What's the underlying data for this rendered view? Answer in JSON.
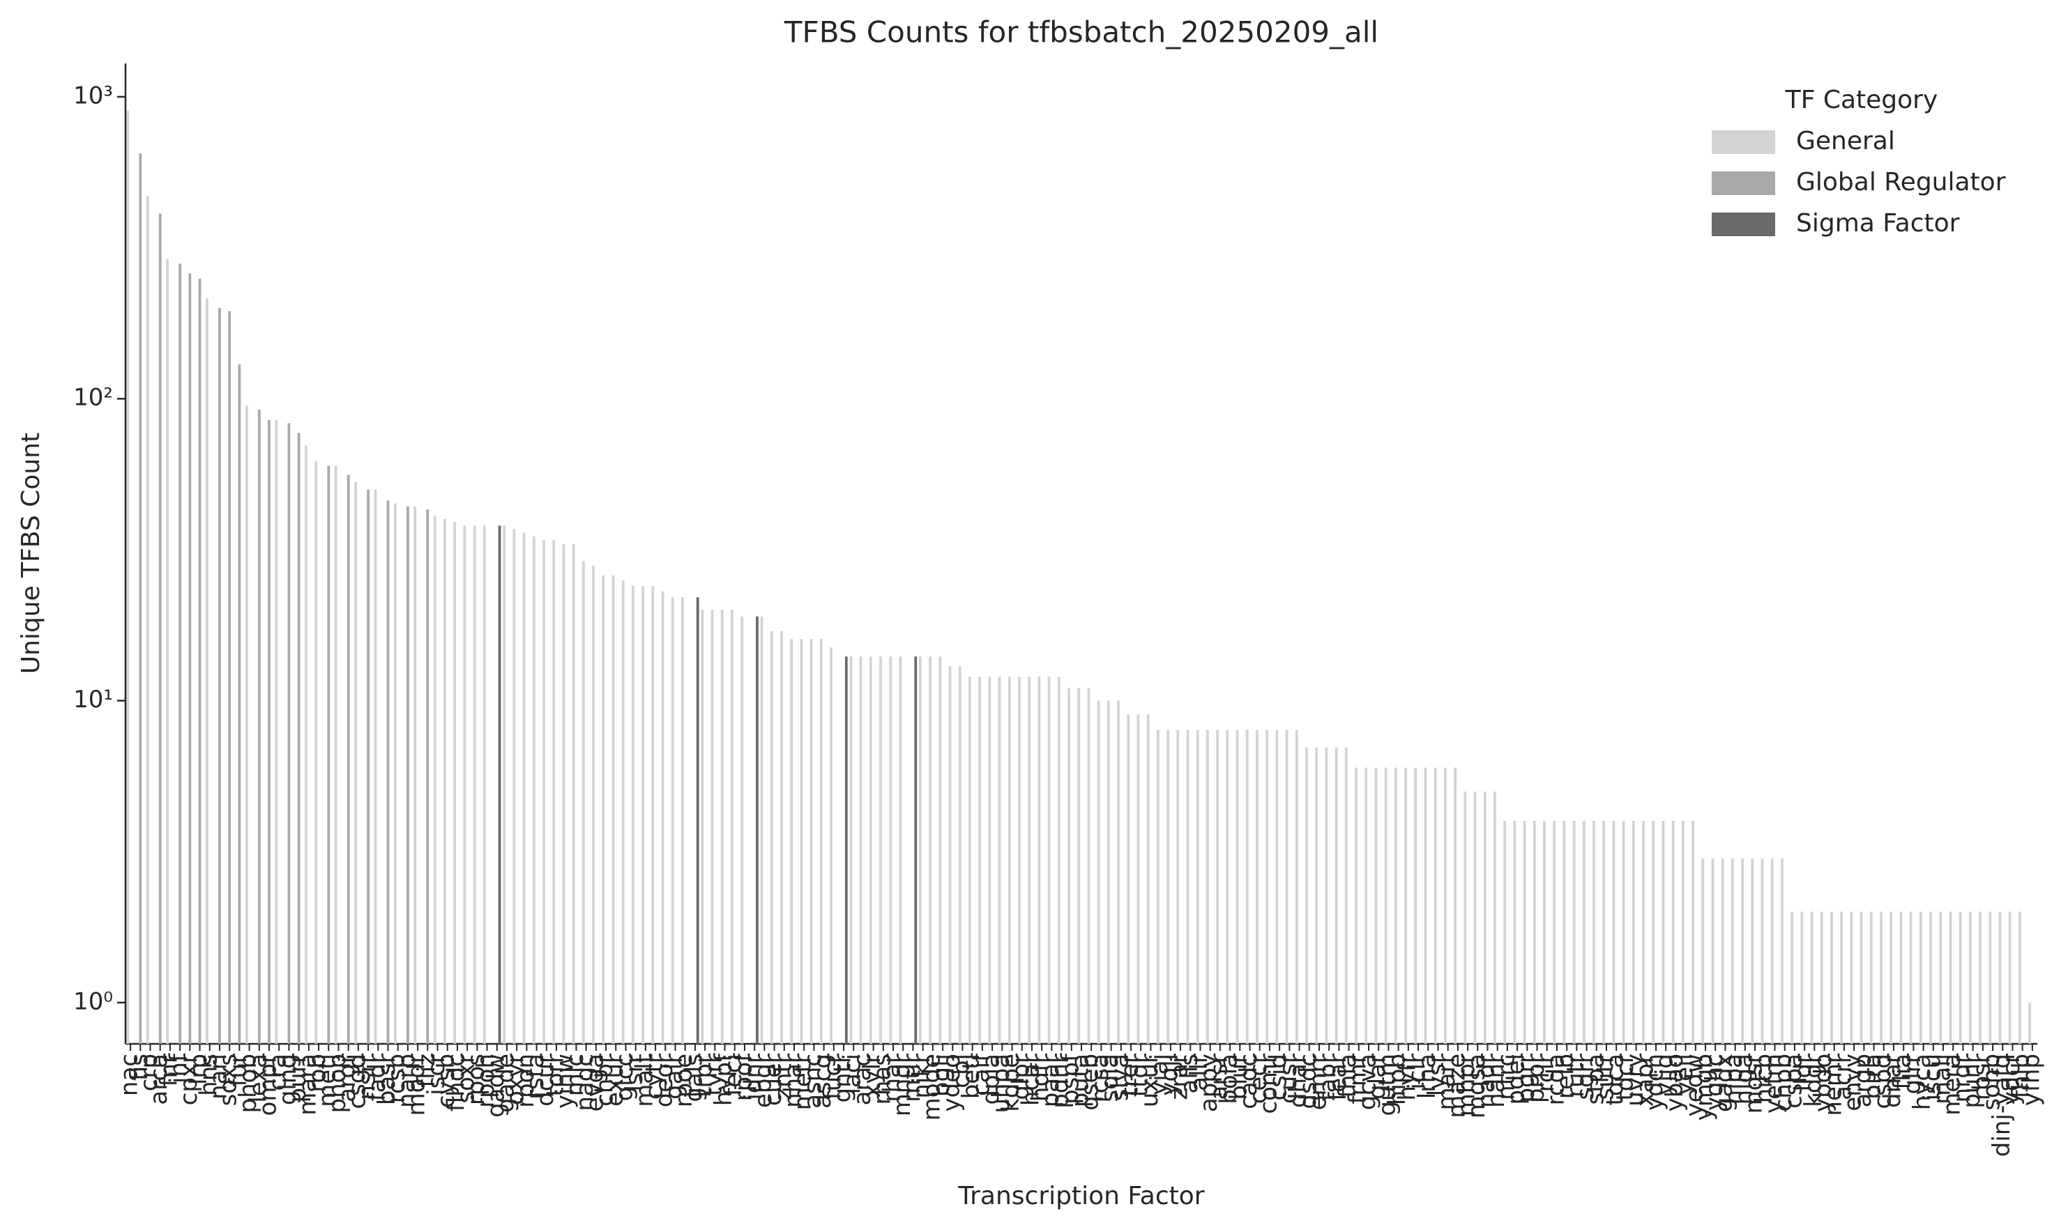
{
  "chart_data": {
    "type": "bar",
    "title": "TFBS Counts for tfbsbatch_20250209_all",
    "x_label": "Transcription Factor",
    "y_label": "Unique TFBS Count",
    "y_scale": "log",
    "ylim": [
      0.73,
      1290
    ],
    "yticks": [
      {
        "value": 1,
        "label": "10⁰"
      },
      {
        "value": 10,
        "label": "10¹"
      },
      {
        "value": 100,
        "label": "10²"
      },
      {
        "value": 1000,
        "label": "10³"
      }
    ],
    "legend": {
      "title": "TF Category",
      "position": "upper right"
    },
    "series_groups": [
      {
        "name": "General",
        "color": "#d3d3d3"
      },
      {
        "name": "Global Regulator",
        "color": "#a9a9a9"
      },
      {
        "name": "Sigma Factor",
        "color": "#696969"
      }
    ],
    "categories": [
      "nac",
      "fis",
      "crp",
      "arca",
      "fnr",
      "ihf",
      "cpxr",
      "lrp",
      "hns",
      "narl",
      "soxs",
      "fur",
      "phob",
      "lexa",
      "ompr",
      "cra",
      "glng",
      "purr",
      "mara",
      "rob",
      "metj",
      "phop",
      "argr",
      "csgd",
      "nsrr",
      "fadr",
      "basr",
      "rcsb",
      "narp",
      "modr",
      "fliz",
      "iscr",
      "cysb",
      "flhdc",
      "soxr",
      "rpos",
      "rpoh",
      "gadw",
      "gade",
      "oxyr",
      "rpon",
      "rsta",
      "dcur",
      "torr",
      "yihw",
      "mlc",
      "nagc",
      "evga",
      "chbr",
      "exur",
      "glcc",
      "lsrr",
      "malt",
      "cytr",
      "deor",
      "galr",
      "rpoe",
      "gals",
      "trpr",
      "tyrr",
      "hypf",
      "feci",
      "rpof",
      "idnr",
      "ebgr",
      "cuer",
      "zntr",
      "nhar",
      "metr",
      "asnc",
      "ascg",
      "fucr",
      "gntr",
      "laci",
      "arac",
      "xylr",
      "rhas",
      "rhar",
      "mngr",
      "mtlr",
      "nikr",
      "mode",
      "bglj",
      "ydeo",
      "cbl",
      "beti",
      "caif",
      "dpia",
      "uhpa",
      "kdpe",
      "glpr",
      "hcar",
      "hdfr",
      "paar",
      "pdhr",
      "pspf",
      "puta",
      "qseb",
      "rcsa",
      "sdia",
      "slya",
      "trer",
      "ttdr",
      "uxur",
      "yiaj",
      "yqji",
      "zrar",
      "alls",
      "allr",
      "appy",
      "arsr",
      "bola",
      "blur",
      "cadc",
      "cecr",
      "comr",
      "csid",
      "cusr",
      "dhar",
      "dsdc",
      "emrr",
      "fabr",
      "fear",
      "fhla",
      "frmr",
      "gcva",
      "glar",
      "gutm",
      "hipb",
      "hyfr",
      "iclr",
      "lrha",
      "lysr",
      "marr",
      "maze",
      "mhpr",
      "mqsa",
      "nadr",
      "nanr",
      "ntrc",
      "pdel",
      "pgrr",
      "prpr",
      "rclr",
      "rcda",
      "relb",
      "rutr",
      "sgrr",
      "stpa",
      "sutr",
      "tdca",
      "tdcr",
      "uvry",
      "xapr",
      "ydcn",
      "yjjq",
      "ybao",
      "yeil",
      "yedw",
      "ymgb",
      "yqhc",
      "gadx",
      "hipa",
      "higa",
      "mqsr",
      "hicb",
      "yefm",
      "chpb",
      "cspa",
      "lldr",
      "kdgr",
      "ybdo",
      "nemr",
      "acrr",
      "envy",
      "argp",
      "bira",
      "cspd",
      "dnar",
      "flia",
      "glrr",
      "hyca",
      "iscu",
      "mali",
      "mera",
      "nrdr",
      "punr",
      "rbsr",
      "sohb",
      "dinj-yafq",
      "ydcr",
      "fhlb",
      "yfhp"
    ],
    "values": [
      900,
      650,
      470,
      410,
      290,
      280,
      260,
      250,
      215,
      200,
      195,
      130,
      95,
      92,
      85,
      85,
      83,
      77,
      70,
      62,
      60,
      60,
      56,
      53,
      50,
      50,
      46,
      45,
      44,
      44,
      43,
      41,
      40,
      39,
      38,
      38,
      38,
      38,
      38,
      37,
      36,
      35,
      34,
      34,
      33,
      33,
      29,
      28,
      26,
      26,
      25,
      24,
      24,
      24,
      23,
      22,
      22,
      22,
      20,
      20,
      20,
      20,
      19,
      19,
      19,
      17,
      17,
      16,
      16,
      16,
      16,
      15,
      14,
      14,
      14,
      14,
      14,
      14,
      14,
      14,
      14,
      14,
      14,
      13,
      13,
      12,
      12,
      12,
      12,
      12,
      12,
      12,
      12,
      12,
      12,
      11,
      11,
      11,
      10,
      10,
      10,
      9,
      9,
      9,
      8,
      8,
      8,
      8,
      8,
      8,
      8,
      8,
      8,
      8,
      8,
      8,
      8,
      8,
      8,
      7,
      7,
      7,
      7,
      7,
      6,
      6,
      6,
      6,
      6,
      6,
      6,
      6,
      6,
      6,
      6,
      5,
      5,
      5,
      5,
      4,
      4,
      4,
      4,
      4,
      4,
      4,
      4,
      4,
      4,
      4,
      4,
      4,
      4,
      4,
      4,
      4,
      4,
      4,
      4,
      3,
      3,
      3,
      3,
      3,
      3,
      3,
      3,
      3,
      2,
      2,
      2,
      2,
      2,
      2,
      2,
      2,
      2,
      2,
      2,
      2,
      2,
      2,
      2,
      2,
      2,
      2,
      2,
      2,
      2,
      2,
      2,
      2,
      1
    ],
    "groups": [
      "General",
      "Global Regulator",
      "General",
      "Global Regulator",
      "General",
      "Global Regulator",
      "Global Regulator",
      "Global Regulator",
      "General",
      "Global Regulator",
      "Global Regulator",
      "Global Regulator",
      "General",
      "Global Regulator",
      "Global Regulator",
      "General",
      "Global Regulator",
      "Global Regulator",
      "General",
      "General",
      "Global Regulator",
      "General",
      "Global Regulator",
      "General",
      "Global Regulator",
      "General",
      "Global Regulator",
      "General",
      "Global Regulator",
      "General",
      "Global Regulator",
      "General",
      "General",
      "General",
      "General",
      "General",
      "General",
      "Sigma Factor",
      "General",
      "General",
      "General",
      "General",
      "General",
      "General",
      "General",
      "General",
      "General",
      "General",
      "General",
      "General",
      "General",
      "General",
      "General",
      "General",
      "General",
      "General",
      "General",
      "Sigma Factor",
      "General",
      "General",
      "General",
      "General",
      "General",
      "Sigma Factor",
      "General",
      "General",
      "General",
      "General",
      "General",
      "General",
      "General",
      "General",
      "Sigma Factor",
      "General",
      "General",
      "General",
      "General",
      "General",
      "General",
      "Sigma Factor",
      "General",
      "General",
      "General",
      "General",
      "General",
      "General",
      "General",
      "General",
      "General",
      "General",
      "General",
      "General",
      "General",
      "General",
      "General",
      "General",
      "General",
      "General",
      "General",
      "General",
      "General",
      "General",
      "General",
      "General",
      "General",
      "General",
      "General",
      "General",
      "General",
      "General",
      "General",
      "General",
      "General",
      "General",
      "General",
      "General",
      "General",
      "General",
      "General",
      "General",
      "General",
      "General",
      "General",
      "General",
      "General",
      "General",
      "General",
      "General",
      "General",
      "General",
      "General",
      "General",
      "General",
      "General",
      "General",
      "General",
      "General",
      "General",
      "General",
      "General",
      "General",
      "General",
      "General",
      "General",
      "General",
      "General",
      "General",
      "General",
      "General",
      "General",
      "General",
      "General",
      "General",
      "General",
      "General",
      "General",
      "General",
      "General",
      "General",
      "General",
      "General",
      "General",
      "General",
      "General",
      "General",
      "General",
      "General",
      "General",
      "General",
      "General",
      "General",
      "General",
      "General",
      "General",
      "General",
      "General",
      "General",
      "General",
      "General",
      "General",
      "General",
      "General",
      "General",
      "General",
      "General",
      "General",
      "General",
      "General",
      "General",
      "General",
      "General",
      "General",
      "General"
    ]
  }
}
